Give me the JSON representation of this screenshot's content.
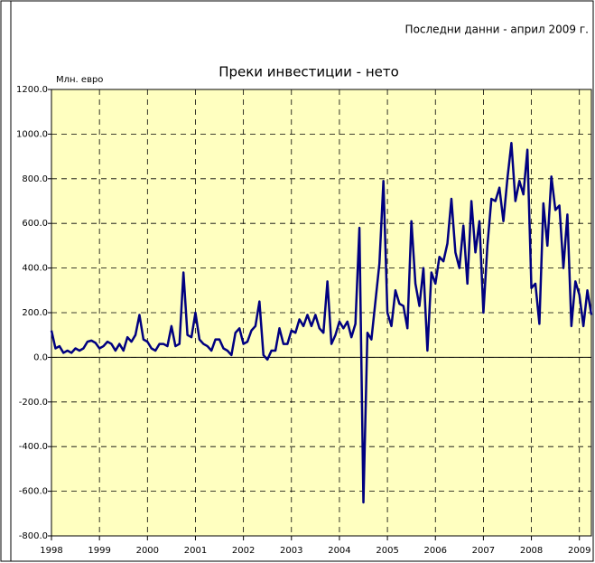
{
  "chart_data": {
    "type": "line",
    "title": "Преки инвестиции - нето",
    "subtitle": "Последни данни - април 2009 г.",
    "y_label": "Млн. евро",
    "grid": true,
    "zero_line": true,
    "background": "#ffffc0",
    "xlim": [
      1998,
      2009.25
    ],
    "xticks": [
      1998,
      1999,
      2000,
      2001,
      2002,
      2003,
      2004,
      2005,
      2006,
      2007,
      2008,
      2009
    ],
    "ylim": [
      -800,
      1200
    ],
    "yticks": [
      {
        "value": -800,
        "label": "-800.0"
      },
      {
        "value": -600,
        "label": "-600.0"
      },
      {
        "value": -400,
        "label": "-400.0"
      },
      {
        "value": -200,
        "label": "-200.0"
      },
      {
        "value": 0,
        "label": "0.0"
      },
      {
        "value": 200,
        "label": "200.0"
      },
      {
        "value": 400,
        "label": "400.0"
      },
      {
        "value": 600,
        "label": "600.0"
      },
      {
        "value": 800,
        "label": "800.0"
      },
      {
        "value": 1000,
        "label": "1000.0"
      },
      {
        "value": 1200,
        "label": "1200.0"
      }
    ],
    "series": [
      {
        "color": "#000080",
        "values": [
          120,
          40,
          50,
          20,
          30,
          20,
          40,
          30,
          40,
          70,
          75,
          65,
          40,
          50,
          70,
          60,
          30,
          60,
          30,
          90,
          70,
          100,
          190,
          80,
          70,
          40,
          30,
          60,
          60,
          50,
          140,
          50,
          60,
          380,
          100,
          90,
          200,
          80,
          60,
          50,
          30,
          80,
          80,
          40,
          30,
          10,
          110,
          130,
          60,
          70,
          120,
          140,
          250,
          10,
          -10,
          30,
          30,
          130,
          60,
          60,
          120,
          110,
          170,
          140,
          190,
          140,
          190,
          130,
          110,
          340,
          60,
          100,
          160,
          130,
          160,
          90,
          150,
          580,
          -650,
          110,
          80,
          250,
          420,
          790,
          200,
          140,
          300,
          240,
          230,
          130,
          610,
          330,
          230,
          400,
          30,
          380,
          330,
          450,
          430,
          510,
          710,
          470,
          400,
          590,
          330,
          700,
          470,
          610,
          200,
          500,
          710,
          700,
          760,
          610,
          800,
          960,
          700,
          790,
          730,
          930,
          310,
          330,
          150,
          690,
          500,
          810,
          660,
          680,
          400,
          640,
          140,
          340,
          280,
          140,
          300,
          190
        ]
      }
    ]
  }
}
